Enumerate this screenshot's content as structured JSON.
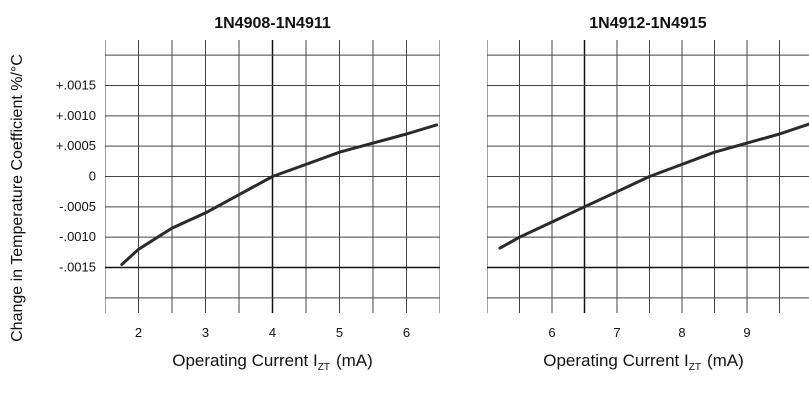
{
  "chart_data": [
    {
      "type": "line",
      "title": "1N4908-1N4911",
      "xlabel": "Operating Current I",
      "xlabel_subscript": "ZT",
      "xlabel_unit": "(mA)",
      "ylabel": "Change in Temperature Coefficient %/°C",
      "xlim": [
        1.5,
        6.5
      ],
      "ylim": [
        -0.00225,
        0.00225
      ],
      "x_ticks": [
        2,
        3,
        4,
        5,
        6
      ],
      "x_tick_labels": [
        "2",
        "3",
        "4",
        "5",
        "6"
      ],
      "y_ticks": [
        0.0015,
        0.001,
        0.0005,
        0,
        -0.0005,
        -0.001,
        -0.0015
      ],
      "y_tick_labels": [
        "+.0015",
        "+.0010",
        "+.0005",
        "0",
        "-.0005",
        "-.0010",
        "-.0015"
      ],
      "grid": true,
      "series": [
        {
          "x": [
            1.75,
            2.0,
            2.5,
            3.0,
            3.5,
            4.0,
            4.5,
            5.0,
            5.5,
            6.0,
            6.45
          ],
          "y": [
            -0.00145,
            -0.0012,
            -0.00085,
            -0.0006,
            -0.0003,
            0.0,
            0.0002,
            0.0004,
            0.00055,
            0.0007,
            0.00085
          ]
        }
      ]
    },
    {
      "type": "line",
      "title": "1N4912-1N4915",
      "xlabel": "Operating Current I",
      "xlabel_subscript": "ZT",
      "xlabel_unit": "(mA)",
      "xlim": [
        5.0,
        10.0
      ],
      "ylim": [
        -0.00225,
        0.00225
      ],
      "x_ticks": [
        6,
        7,
        8,
        9
      ],
      "x_tick_labels": [
        "6",
        "7",
        "8",
        "9"
      ],
      "grid": true,
      "series": [
        {
          "x": [
            5.2,
            5.5,
            6.0,
            6.5,
            7.0,
            7.5,
            8.0,
            8.5,
            9.0,
            9.5,
            10.0
          ],
          "y": [
            -0.00118,
            -0.001,
            -0.00075,
            -0.0005,
            -0.00025,
            0.0,
            0.0002,
            0.0004,
            0.00055,
            0.0007,
            0.00088
          ]
        }
      ]
    }
  ]
}
